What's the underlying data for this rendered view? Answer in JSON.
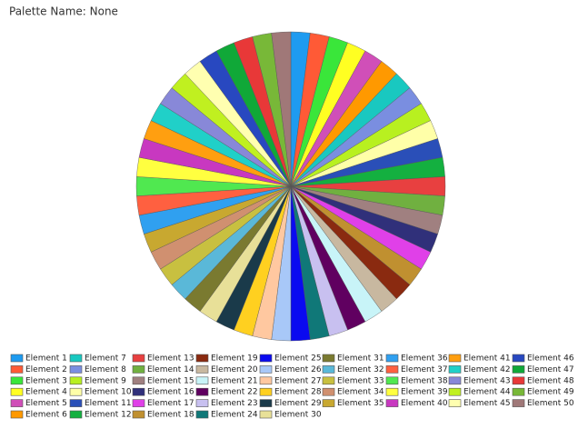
{
  "chart_data": {
    "type": "pie",
    "title": "Palette Name: None",
    "categories": [
      "Element 1",
      "Element 2",
      "Element 3",
      "Element 4",
      "Element 5",
      "Element 6",
      "Element 7",
      "Element 8",
      "Element 9",
      "Element 10",
      "Element 11",
      "Element 12",
      "Element 13",
      "Element 14",
      "Element 15",
      "Element 16",
      "Element 17",
      "Element 18",
      "Element 19",
      "Element 20",
      "Element 21",
      "Element 22",
      "Element 23",
      "Element 24",
      "Element 25",
      "Element 26",
      "Element 27",
      "Element 28",
      "Element 29",
      "Element 30",
      "Element 31",
      "Element 32",
      "Element 33",
      "Element 34",
      "Element 35",
      "Element 36",
      "Element 37",
      "Element 38",
      "Element 39",
      "Element 40",
      "Element 41",
      "Element 42",
      "Element 43",
      "Element 44",
      "Element 45",
      "Element 46",
      "Element 47",
      "Element 48",
      "Element 49",
      "Element 50"
    ],
    "values": [
      1,
      1,
      1,
      1,
      1,
      1,
      1,
      1,
      1,
      1,
      1,
      1,
      1,
      1,
      1,
      1,
      1,
      1,
      1,
      1,
      1,
      1,
      1,
      1,
      1,
      1,
      1,
      1,
      1,
      1,
      1,
      1,
      1,
      1,
      1,
      1,
      1,
      1,
      1,
      1,
      1,
      1,
      1,
      1,
      1,
      1,
      1,
      1,
      1,
      1
    ],
    "colors": [
      "#1e9bf0",
      "#ff5a36",
      "#3ae63a",
      "#ffff22",
      "#d04fb8",
      "#ff9900",
      "#19c8c0",
      "#7a8ee0",
      "#b8f020",
      "#ffffa8",
      "#2a4fb8",
      "#14b040",
      "#e84040",
      "#70b040",
      "#a08080",
      "#30307a",
      "#e040e8",
      "#c09030",
      "#8a2a10",
      "#c8b8a0",
      "#c8f4f8",
      "#600060",
      "#c8c0f0",
      "#107878",
      "#0a0af0",
      "#a8c8f8",
      "#ffc8a0",
      "#ffd020",
      "#1a3a4a",
      "#e8e098",
      "#7a7a30",
      "#5ab8d8",
      "#c8c040",
      "#d09070",
      "#c8a830",
      "#30a0f0",
      "#ff6040",
      "#50e850",
      "#ffff40",
      "#c838c0",
      "#ff9f10",
      "#20d0c8",
      "#8888d8",
      "#c0f020",
      "#ffffb0",
      "#2848c0",
      "#10a838",
      "#e83838",
      "#78b838",
      "#a07878"
    ]
  }
}
